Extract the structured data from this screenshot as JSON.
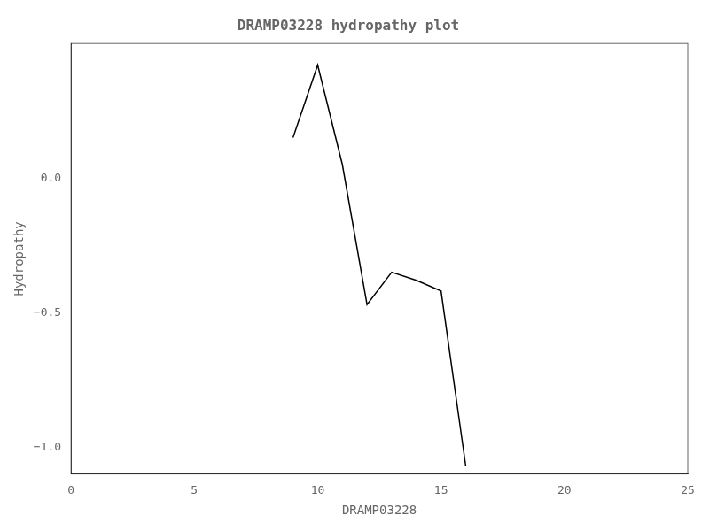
{
  "chart_data": {
    "type": "line",
    "title": "DRAMP03228 hydropathy plot",
    "xlabel": "DRAMP03228",
    "ylabel": "Hydropathy",
    "x": [
      9,
      10,
      11,
      12,
      13,
      14,
      15,
      16
    ],
    "values": [
      0.15,
      0.42,
      0.05,
      -0.47,
      -0.35,
      -0.38,
      -0.42,
      -1.07
    ],
    "color": "black",
    "xlim": [
      0,
      25
    ],
    "xticks": [
      0,
      5,
      10,
      15,
      20,
      25
    ],
    "ylim": [
      -1.1,
      0.5
    ],
    "yticks": [
      {
        "value": -1.0,
        "label": "−1.0"
      },
      {
        "value": -0.5,
        "label": "−0.5"
      },
      {
        "value": 0.0,
        "label": "0.0"
      }
    ],
    "grid": false
  }
}
